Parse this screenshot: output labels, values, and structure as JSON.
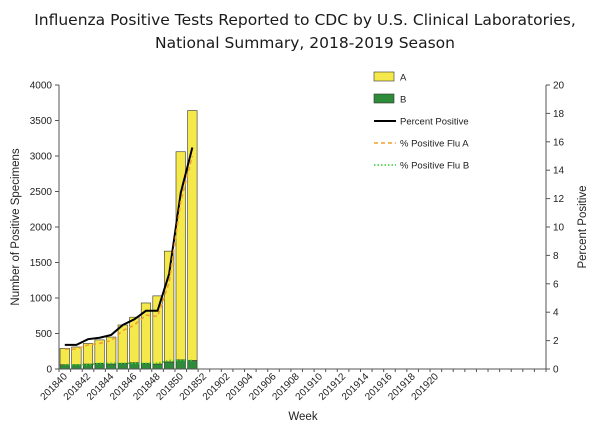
{
  "chart_data": {
    "type": "bar",
    "title": "Influenza Positive Tests Reported to CDC by U.S. Clinical Laboratories,",
    "subtitle": "National Summary, 2018-2019 Season",
    "xlabel": "Week",
    "ylabel": "Number of Positive Specimens",
    "y2label": "Percent Positive",
    "ylim": [
      0,
      4000
    ],
    "y2lim": [
      0,
      20
    ],
    "yticks": [
      0,
      500,
      1000,
      1500,
      2000,
      2500,
      3000,
      3500,
      4000
    ],
    "y2ticks": [
      0,
      2,
      4,
      6,
      8,
      10,
      12,
      14,
      16,
      18,
      20
    ],
    "categories": [
      "201840",
      "201841",
      "201842",
      "201843",
      "201844",
      "201845",
      "201846",
      "201847",
      "201848",
      "201849",
      "201850",
      "201851"
    ],
    "xtick_labels": [
      "201840",
      "201842",
      "201844",
      "201846",
      "201848",
      "201850",
      "201852",
      "201902",
      "201904",
      "201906",
      "201908",
      "201910",
      "201912",
      "201914",
      "201916",
      "201918",
      "201920"
    ],
    "series": [
      {
        "name": "A",
        "kind": "bar",
        "color": "#f5e84a",
        "values": [
          230,
          250,
          290,
          330,
          380,
          540,
          640,
          850,
          960,
          1560,
          2930,
          3520
        ]
      },
      {
        "name": "B",
        "kind": "bar",
        "color": "#2e8b3a",
        "values": [
          60,
          60,
          70,
          80,
          70,
          80,
          90,
          80,
          70,
          100,
          130,
          120
        ]
      },
      {
        "name": "Percent Positive",
        "kind": "line",
        "color": "#000000",
        "values": [
          1.7,
          1.7,
          2.1,
          2.2,
          2.4,
          3.1,
          3.5,
          4.1,
          4.1,
          6.7,
          12.4,
          15.6
        ]
      },
      {
        "name": "% Positive Flu A",
        "kind": "line",
        "color": "#f0a030",
        "dash": "4,3",
        "values": [
          1.4,
          1.4,
          1.7,
          1.8,
          2.0,
          2.7,
          3.1,
          3.8,
          3.7,
          6.1,
          11.8,
          15.0
        ]
      },
      {
        "name": "% Positive Flu B",
        "kind": "line",
        "color": "#33cc33",
        "dash": "1.5,2",
        "values": [
          0.3,
          0.3,
          0.3,
          0.4,
          0.4,
          0.4,
          0.4,
          0.4,
          0.4,
          0.6,
          0.6,
          0.6
        ]
      }
    ],
    "legend": "top-right",
    "grid": false
  }
}
